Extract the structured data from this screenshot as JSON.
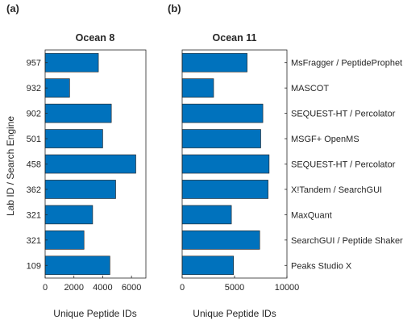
{
  "panel_labels": [
    "(a)",
    "(b)"
  ],
  "shared_ylabel": "Lab ID / Search Engine",
  "colors": {
    "bar": "#0072bd",
    "edge": "#1a1a1a",
    "axis": "#262626"
  },
  "chart_data": [
    {
      "type": "bar",
      "orientation": "horizontal",
      "title": "Ocean 8",
      "xlabel": "Unique Peptide IDs",
      "ylabel": "Lab ID / Search Engine",
      "categories": [
        "957",
        "932",
        "902",
        "501",
        "458",
        "362",
        "321",
        "321",
        "109"
      ],
      "values": [
        3700,
        1700,
        4600,
        4000,
        6300,
        4900,
        3300,
        2700,
        4500
      ],
      "xlim": [
        0,
        7000
      ],
      "xticks": [
        0,
        2000,
        4000,
        6000
      ],
      "grid": false
    },
    {
      "type": "bar",
      "orientation": "horizontal",
      "title": "Ocean 11",
      "xlabel": "Unique Peptide IDs",
      "categories": [
        "MsFragger / PeptideProphet",
        "MASCOT",
        "SEQUEST-HT / Percolator",
        "MSGF+ OpenMS",
        "SEQUEST-HT / Percolator",
        "X!Tandem / SearchGUI",
        "MaxQuant",
        "SearchGUI / Peptide Shaker",
        "Peaks Studio X"
      ],
      "values": [
        6200,
        3000,
        7700,
        7500,
        8300,
        8200,
        4700,
        7400,
        4900
      ],
      "xlim": [
        0,
        10000
      ],
      "xticks": [
        0,
        5000,
        10000
      ],
      "grid": false
    }
  ]
}
